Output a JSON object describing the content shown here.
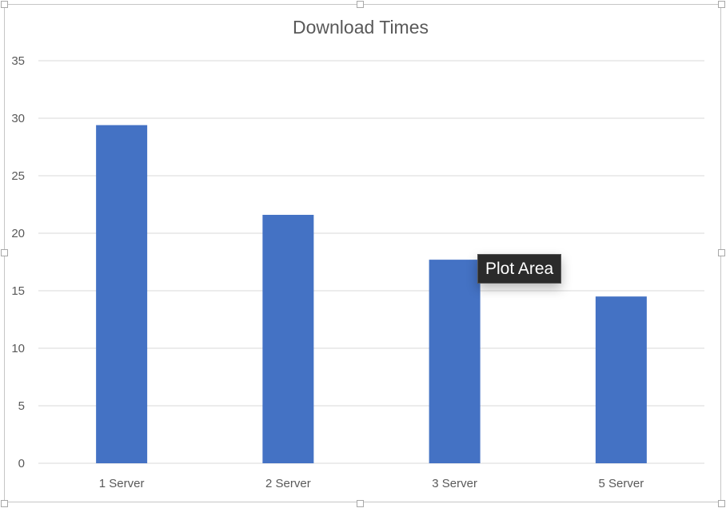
{
  "chart_data": {
    "type": "bar",
    "title": "Download Times",
    "categories": [
      "1 Server",
      "2 Server",
      "3 Server",
      "5 Server"
    ],
    "values": [
      29.4,
      21.6,
      17.7,
      14.5
    ],
    "ylim": [
      0,
      35
    ],
    "yticks": [
      0,
      5,
      10,
      15,
      20,
      25,
      30,
      35
    ],
    "grid": true,
    "legend": "none",
    "bar_color": "#4472C4",
    "grid_color": "#d9d9d9"
  },
  "tooltip": {
    "text": "Plot Area"
  }
}
